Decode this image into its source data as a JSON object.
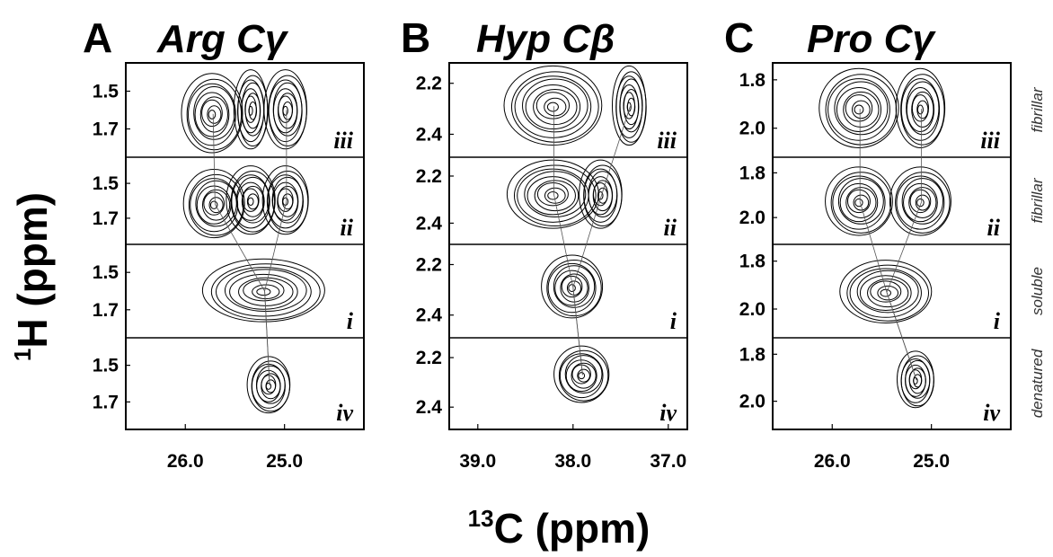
{
  "chart_data": {
    "type": "contour",
    "xlabel_sup": "13",
    "xlabel_main": "C (ppm)",
    "ylabel_sup": "1",
    "ylabel_main": "H (ppm)",
    "row_order": [
      "iii",
      "ii",
      "i",
      "iv"
    ],
    "sample_states": [
      "fibrillar",
      "fibrillar",
      "soluble",
      "denatured"
    ],
    "panels": [
      {
        "letter": "A",
        "title": "Arg Cγ",
        "xlim": [
          26.6,
          24.2
        ],
        "x_ticks": [
          "26.0",
          "25.0"
        ],
        "x_tick_values": [
          26.0,
          25.0
        ],
        "ylim": [
          1.35,
          1.85
        ],
        "y_ticks": [
          "1.5",
          "1.7"
        ],
        "y_tick_values": [
          1.5,
          1.7
        ],
        "rows": [
          {
            "label": "iii",
            "peaks": [
              {
                "x": 25.72,
                "y": 1.62
              },
              {
                "x": 25.33,
                "y": 1.6
              },
              {
                "x": 24.98,
                "y": 1.6
              }
            ]
          },
          {
            "label": "ii",
            "peaks": [
              {
                "x": 25.7,
                "y": 1.62
              },
              {
                "x": 25.33,
                "y": 1.6
              },
              {
                "x": 24.98,
                "y": 1.6
              }
            ]
          },
          {
            "label": "i",
            "peaks": [
              {
                "x": 25.2,
                "y": 1.6
              }
            ]
          },
          {
            "label": "iv",
            "peaks": [
              {
                "x": 25.15,
                "y": 1.61
              }
            ]
          }
        ]
      },
      {
        "letter": "B",
        "title": "Hyp Cβ",
        "xlim": [
          39.3,
          36.8
        ],
        "x_ticks": [
          "39.0",
          "38.0",
          "37.0"
        ],
        "x_tick_values": [
          39.0,
          38.0,
          37.0
        ],
        "ylim": [
          2.12,
          2.49
        ],
        "y_ticks": [
          "2.2",
          "2.4"
        ],
        "y_tick_values": [
          2.2,
          2.4
        ],
        "rows": [
          {
            "label": "iii",
            "peaks": [
              {
                "x": 38.2,
                "y": 2.29
              },
              {
                "x": 37.4,
                "y": 2.29
              }
            ]
          },
          {
            "label": "ii",
            "peaks": [
              {
                "x": 38.2,
                "y": 2.28
              },
              {
                "x": 37.7,
                "y": 2.28
              }
            ]
          },
          {
            "label": "i",
            "peaks": [
              {
                "x": 38.0,
                "y": 2.29
              }
            ]
          },
          {
            "label": "iv",
            "peaks": [
              {
                "x": 37.9,
                "y": 2.27
              }
            ]
          }
        ]
      },
      {
        "letter": "C",
        "title": "Pro Cγ",
        "xlim": [
          26.6,
          24.2
        ],
        "x_ticks": [
          "26.0",
          "25.0"
        ],
        "x_tick_values": [
          26.0,
          25.0
        ],
        "ylim": [
          1.73,
          2.12
        ],
        "y_ticks": [
          "1.8",
          "2.0"
        ],
        "y_tick_values": [
          1.8,
          2.0
        ],
        "rows": [
          {
            "label": "iii",
            "peaks": [
              {
                "x": 25.72,
                "y": 1.92
              },
              {
                "x": 25.1,
                "y": 1.92
              }
            ]
          },
          {
            "label": "ii",
            "peaks": [
              {
                "x": 25.72,
                "y": 1.93
              },
              {
                "x": 25.1,
                "y": 1.93
              }
            ]
          },
          {
            "label": "i",
            "peaks": [
              {
                "x": 25.45,
                "y": 1.93
              }
            ]
          },
          {
            "label": "iv",
            "peaks": [
              {
                "x": 25.15,
                "y": 1.91
              }
            ]
          }
        ]
      }
    ]
  }
}
